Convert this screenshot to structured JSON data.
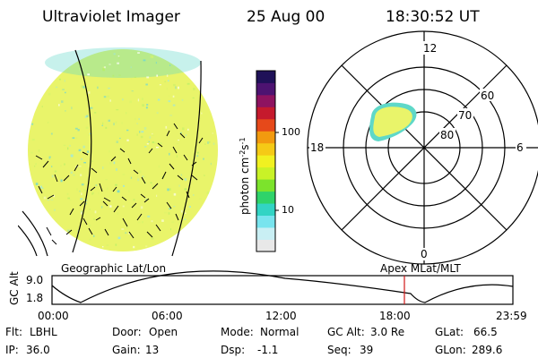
{
  "header": {
    "title": "Ultraviolet Imager",
    "date": "25 Aug 00",
    "time": "18:30:52 UT"
  },
  "colors": {
    "disk_fill": "#e9f46a",
    "disk_edge": "#5fd8c8",
    "bar_colors": [
      "#e8e8e8",
      "#c9eff4",
      "#78e4ee",
      "#32d4c4",
      "#2fd36a",
      "#7ce32c",
      "#c9f227",
      "#f1f121",
      "#f5ca16",
      "#f29a0f",
      "#e6491a",
      "#c51a2d",
      "#8e1360",
      "#4d1371",
      "#1f1158"
    ],
    "tick_red": "#d01818",
    "line": "#000000"
  },
  "colorbar": {
    "unit_label_html": "photon cm<tspan baseline-shift=\"super\" font-size=\"8\">-2</tspan>s<tspan baseline-shift=\"super\" font-size=\"8\">-1</tspan>",
    "unit_label": "photon cm-2s-1",
    "ticks": [
      "100",
      "10"
    ]
  },
  "polar": {
    "mlt_labels": {
      "top": "12",
      "left": "18",
      "right": "6",
      "bottom": "0"
    },
    "lat_labels": [
      "60",
      "70",
      "80"
    ]
  },
  "panel_labels": {
    "left": "Geographic Lat/Lon",
    "right": "Apex MLat/MLT"
  },
  "timeline": {
    "y_axis_label": "GC Alt",
    "y_ticks": [
      "9.0",
      "1.8"
    ],
    "x_ticks": [
      "00:00",
      "06:00",
      "12:00",
      "18:00",
      "23:59"
    ]
  },
  "footer": {
    "row1": [
      {
        "label": "Flt:",
        "value": "LBHL"
      },
      {
        "label": "Door:",
        "value": "Open"
      },
      {
        "label": "Mode:",
        "value": "Normal"
      },
      {
        "label": "GC Alt:",
        "value": "3.0 Re"
      },
      {
        "label": "GLat:",
        "value": "66.5"
      }
    ],
    "row2": [
      {
        "label": "IP:",
        "value": "36.0"
      },
      {
        "label": "Gain:",
        "value": "13"
      },
      {
        "label": "Dsp:",
        "value": "-1.1"
      },
      {
        "label": "Seq:",
        "value": "39"
      },
      {
        "label": "GLon:",
        "value": "289.6"
      }
    ]
  }
}
